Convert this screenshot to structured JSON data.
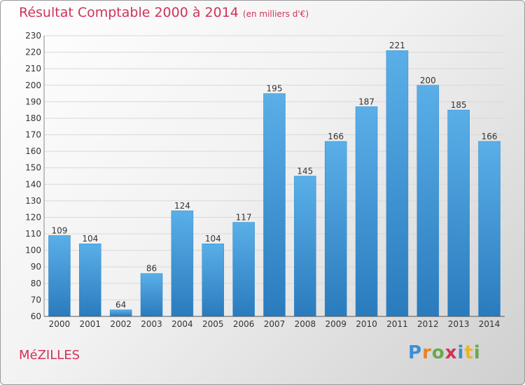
{
  "header": {
    "title": "Résultat Comptable 2000 à 2014",
    "subtitle": "(en milliers d'€)"
  },
  "footer": {
    "city": "MéZILLES",
    "logo": "Proxiti"
  },
  "colors": {
    "title": "#d0325a",
    "bar_top": "#5aafe8",
    "bar_bottom": "#2a7bbd"
  },
  "chart_data": {
    "type": "bar",
    "title": "Résultat Comptable 2000 à 2014",
    "subtitle": "(en milliers d'€)",
    "categories": [
      "2000",
      "2001",
      "2002",
      "2003",
      "2004",
      "2005",
      "2006",
      "2007",
      "2008",
      "2009",
      "2010",
      "2011",
      "2012",
      "2013",
      "2014"
    ],
    "values": [
      109,
      104,
      64,
      86,
      124,
      104,
      117,
      195,
      145,
      166,
      187,
      221,
      200,
      185,
      166
    ],
    "xlabel": "",
    "ylabel": "",
    "ylim": [
      60,
      230
    ],
    "yticks": [
      60,
      70,
      80,
      90,
      100,
      110,
      120,
      130,
      140,
      150,
      160,
      170,
      180,
      190,
      200,
      210,
      220,
      230
    ],
    "grid": true,
    "legend": "none"
  }
}
